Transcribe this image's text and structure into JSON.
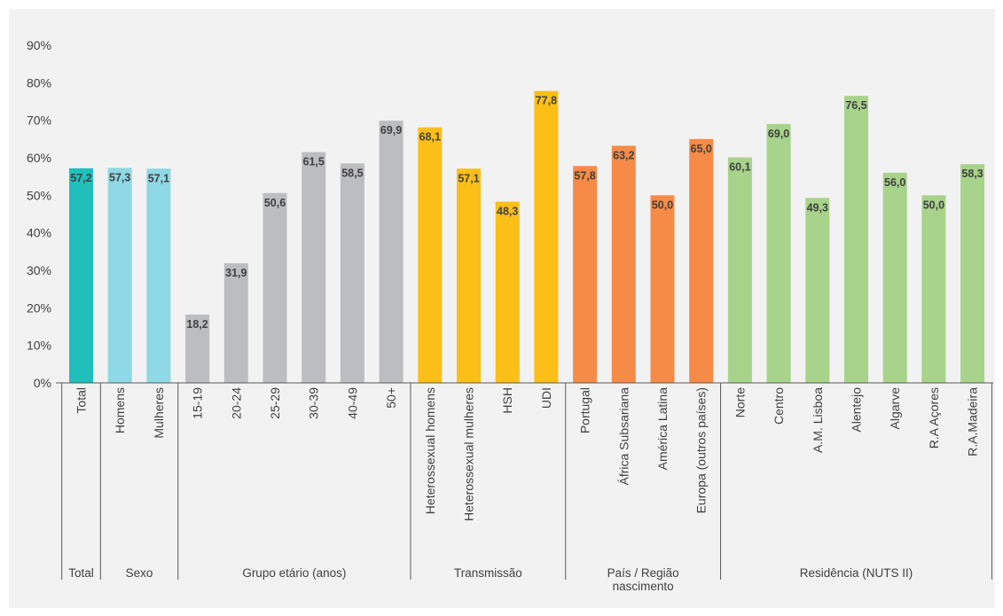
{
  "chart_data": {
    "type": "bar",
    "title": "",
    "xlabel": "",
    "ylabel": "",
    "ylim": [
      0,
      90
    ],
    "y_ticks": [
      "0%",
      "10%",
      "20%",
      "30%",
      "40%",
      "50%",
      "60%",
      "70%",
      "80%",
      "90%"
    ],
    "grid": false,
    "legend": "none",
    "categories": [
      "Total",
      "Homens",
      "Mulheres",
      "15-19",
      "20-24",
      "25-29",
      "30-39",
      "40-49",
      "50+",
      "Heterossexual homens",
      "Heterossexual mulheres",
      "HSH",
      "UDI",
      "Portugal",
      "África Subsariana",
      "América Latina",
      "Europa (outros países)",
      "Norte",
      "Centro",
      "A.M. Lisboa",
      "Alentejo",
      "Algarve",
      "R.A Açores",
      "R.A.Madeira"
    ],
    "values": [
      57.2,
      57.3,
      57.1,
      18.2,
      31.9,
      50.6,
      61.5,
      58.5,
      69.9,
      68.1,
      57.1,
      48.3,
      77.8,
      57.8,
      63.2,
      50.0,
      65.0,
      60.1,
      69.0,
      49.3,
      76.5,
      56.0,
      50.0,
      58.3
    ],
    "value_labels": [
      "57,2",
      "57,3",
      "57,1",
      "18,2",
      "31,9",
      "50,6",
      "61,5",
      "58,5",
      "69,9",
      "68,1",
      "57,1",
      "48,3",
      "77,8",
      "57,8",
      "63,2",
      "50,0",
      "65,0",
      "60,1",
      "69,0",
      "49,3",
      "76,5",
      "56,0",
      "50,0",
      "58,3"
    ],
    "groups": [
      {
        "name": "Total",
        "lines": [
          "Total"
        ],
        "count": 1,
        "color": "#20bfbc"
      },
      {
        "name": "Sexo",
        "lines": [
          "Sexo"
        ],
        "count": 2,
        "color": "#8fd8e5"
      },
      {
        "name": "Grupo etário (anos)",
        "lines": [
          "Grupo etário (anos)"
        ],
        "count": 6,
        "color": "#bcbdc0"
      },
      {
        "name": "Transmissão",
        "lines": [
          "Transmissão"
        ],
        "count": 4,
        "color": "#fbbf17"
      },
      {
        "name": "País / Região nascimento",
        "lines": [
          "País / Região",
          "nascimento"
        ],
        "count": 4,
        "color": "#f68b47"
      },
      {
        "name": "Residência (NUTS II)",
        "lines": [
          "Residência (NUTS II)"
        ],
        "count": 7,
        "color": "#a7d38a"
      }
    ],
    "colors": {
      "axis": "#595959",
      "text": "#404040",
      "value_label": "#404040",
      "background": "#f2f2f2"
    }
  }
}
